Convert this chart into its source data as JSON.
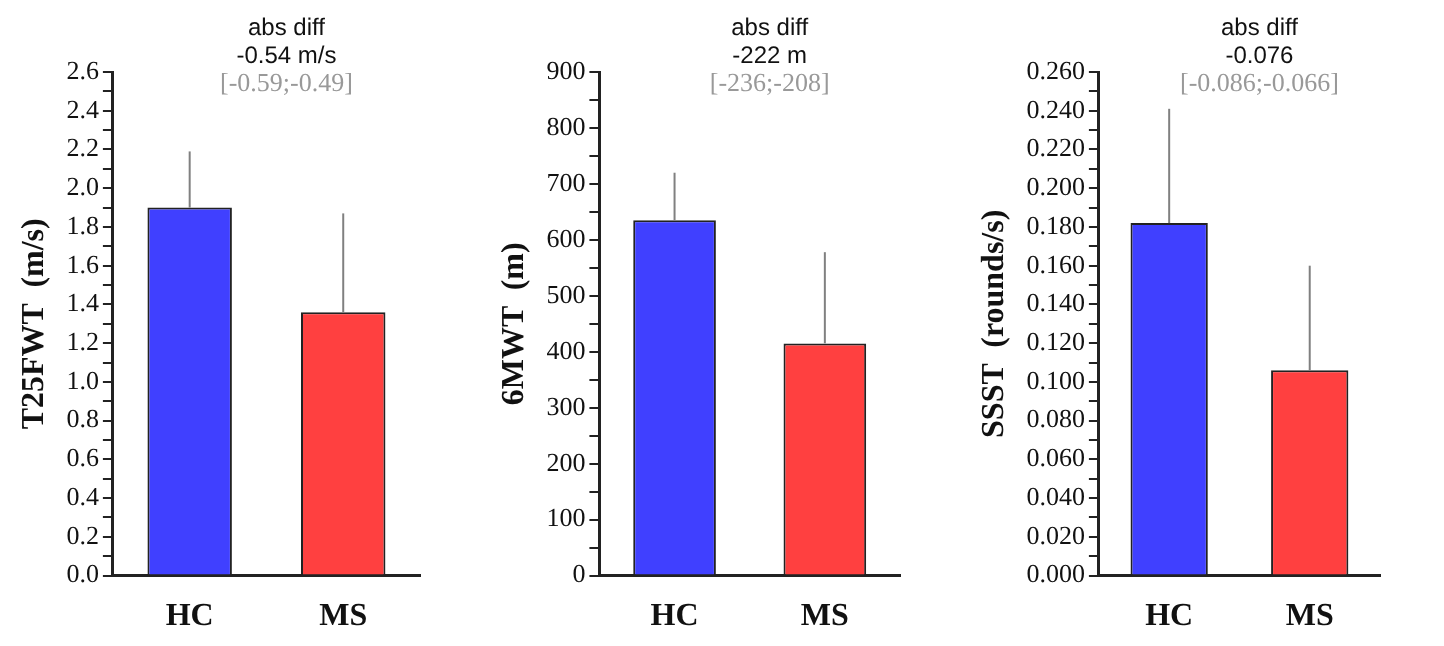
{
  "chart_data": [
    {
      "type": "bar",
      "ylabel": "T25FWT  (m/s)",
      "annotations": [
        "abs diff",
        "-0.54 m/s",
        "[-0.59;-0.49]"
      ],
      "categories": [
        "HC",
        "MS"
      ],
      "values": [
        1.9,
        1.36
      ],
      "colors": [
        "#4040ff",
        "#ff4040"
      ],
      "errors": [
        [
          1.9,
          2.19
        ],
        [
          1.36,
          1.87
        ]
      ],
      "ylim": [
        0,
        2.6
      ],
      "yticks": [
        {
          "value": 0,
          "label": "0.0"
        },
        {
          "value": 0.1,
          "label": null
        },
        {
          "value": 0.2,
          "label": "0.2"
        },
        {
          "value": 0.3,
          "label": null
        },
        {
          "value": 0.4,
          "label": "0.4"
        },
        {
          "value": 0.5,
          "label": null
        },
        {
          "value": 0.6,
          "label": "0.6"
        },
        {
          "value": 0.7,
          "label": null
        },
        {
          "value": 0.8,
          "label": "0.8"
        },
        {
          "value": 0.9,
          "label": null
        },
        {
          "value": 1.0,
          "label": "1.0"
        },
        {
          "value": 1.1,
          "label": null
        },
        {
          "value": 1.2,
          "label": "1.2"
        },
        {
          "value": 1.3,
          "label": null
        },
        {
          "value": 1.4,
          "label": "1.4"
        },
        {
          "value": 1.5,
          "label": null
        },
        {
          "value": 1.6,
          "label": "1.6"
        },
        {
          "value": 1.7,
          "label": null
        },
        {
          "value": 1.8,
          "label": "1.8"
        },
        {
          "value": 1.9,
          "label": null
        },
        {
          "value": 2.0,
          "label": "2.0"
        },
        {
          "value": 2.1,
          "label": null
        },
        {
          "value": 2.2,
          "label": "2.2"
        },
        {
          "value": 2.3,
          "label": null
        },
        {
          "value": 2.4,
          "label": "2.4"
        },
        {
          "value": 2.5,
          "label": null
        },
        {
          "value": 2.6,
          "label": "2.6"
        }
      ]
    },
    {
      "type": "bar",
      "ylabel": "6MWT  (m)",
      "annotations": [
        "abs diff",
        "-222 m",
        "[-236;-208]"
      ],
      "categories": [
        "HC",
        "MS"
      ],
      "values": [
        635,
        415
      ],
      "colors": [
        "#4040ff",
        "#ff4040"
      ],
      "errors": [
        [
          635,
          720
        ],
        [
          415,
          578
        ]
      ],
      "ylim": [
        0,
        900
      ],
      "yticks": [
        0,
        {
          "value": 50,
          "label": null
        },
        100,
        {
          "value": 150,
          "label": null
        },
        200,
        {
          "value": 250,
          "label": null
        },
        300,
        {
          "value": 350,
          "label": null
        },
        400,
        {
          "value": 450,
          "label": null
        },
        500,
        {
          "value": 550,
          "label": null
        },
        600,
        {
          "value": 650,
          "label": null
        },
        700,
        {
          "value": 750,
          "label": null
        },
        800,
        {
          "value": 850,
          "label": null
        },
        900
      ]
    },
    {
      "type": "bar",
      "ylabel": "SSST  (rounds/s)",
      "annotations": [
        "abs diff",
        "-0.076",
        "[-0.086;-0.066]"
      ],
      "categories": [
        "HC",
        "MS"
      ],
      "values": [
        0.182,
        0.106
      ],
      "colors": [
        "#4040ff",
        "#ff4040"
      ],
      "errors": [
        [
          0.182,
          0.241
        ],
        [
          0.106,
          0.16
        ]
      ],
      "ylim": [
        0,
        0.26
      ],
      "yticks": [
        {
          "value": 0,
          "label": "0.000"
        },
        {
          "value": 0.01,
          "label": null
        },
        {
          "value": 0.02,
          "label": "0.020"
        },
        {
          "value": 0.03,
          "label": null
        },
        {
          "value": 0.04,
          "label": "0.040"
        },
        {
          "value": 0.05,
          "label": null
        },
        {
          "value": 0.06,
          "label": "0.060"
        },
        {
          "value": 0.07,
          "label": null
        },
        {
          "value": 0.08,
          "label": "0.080"
        },
        {
          "value": 0.09,
          "label": null
        },
        {
          "value": 0.1,
          "label": "0.100"
        },
        {
          "value": 0.11,
          "label": null
        },
        {
          "value": 0.12,
          "label": "0.120"
        },
        {
          "value": 0.13,
          "label": null
        },
        {
          "value": 0.14,
          "label": "0.140"
        },
        {
          "value": 0.15,
          "label": null
        },
        {
          "value": 0.16,
          "label": "0.160"
        },
        {
          "value": 0.17,
          "label": null
        },
        {
          "value": 0.18,
          "label": "0.180"
        },
        {
          "value": 0.19,
          "label": null
        },
        {
          "value": 0.2,
          "label": "0.200"
        },
        {
          "value": 0.21,
          "label": null
        },
        {
          "value": 0.22,
          "label": "0.220"
        },
        {
          "value": 0.23,
          "label": null
        },
        {
          "value": 0.24,
          "label": "0.240"
        },
        {
          "value": 0.25,
          "label": null
        },
        {
          "value": 0.26,
          "label": "0.260"
        }
      ]
    }
  ]
}
